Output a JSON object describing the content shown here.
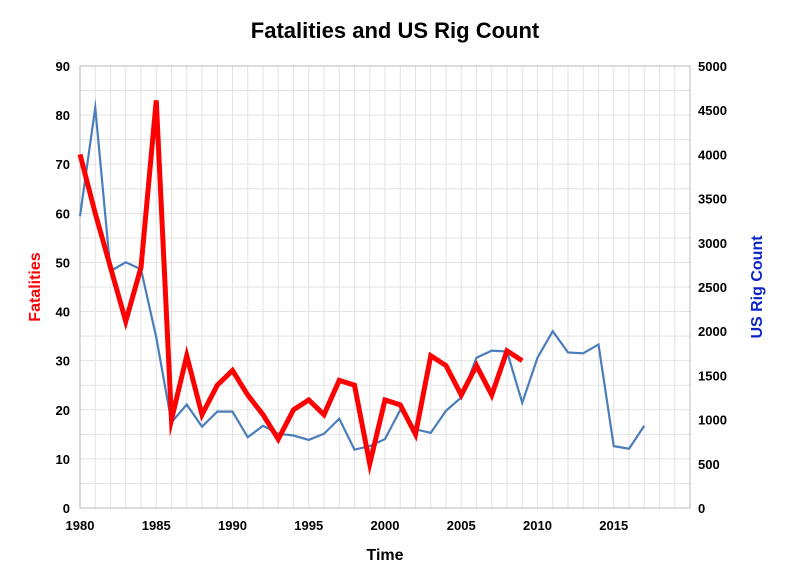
{
  "chart_data": {
    "type": "line",
    "title": "Fatalities and US Rig Count",
    "xlabel": "Time",
    "ylabel_left": "Fatalities",
    "ylabel_right": "US Rig Count",
    "xlim": [
      1980,
      2020
    ],
    "ylim_left": [
      0,
      90
    ],
    "ylim_right": [
      0,
      5000
    ],
    "x_ticks": [
      1980,
      1985,
      1990,
      1995,
      2000,
      2005,
      2010,
      2015
    ],
    "y_left_ticks": [
      0,
      10,
      20,
      30,
      40,
      50,
      60,
      70,
      80,
      90
    ],
    "y_right_ticks": [
      0,
      500,
      1000,
      1500,
      2000,
      2500,
      3000,
      3500,
      4000,
      4500,
      5000
    ],
    "grid": true,
    "colors": {
      "fatalities": "#ff0000",
      "rig_count": "#4a7ebb",
      "left_axis_title": "#ff0000",
      "right_axis_title": "#0b24c8"
    },
    "series": [
      {
        "axis": "left",
        "x": [
          1980,
          1981,
          1982,
          1983,
          1984,
          1985,
          1986,
          1987,
          1988,
          1989,
          1990,
          1991,
          1992,
          1993,
          1994,
          1995,
          1996,
          1997,
          1998,
          1999,
          2000,
          2001,
          2002,
          2003,
          2004,
          2005,
          2006,
          2007,
          2008,
          2009
        ],
        "values": [
          72,
          60,
          49,
          38,
          49,
          83,
          18,
          31,
          19,
          25,
          28,
          23,
          19,
          14,
          20,
          22,
          19,
          26,
          25,
          9,
          22,
          21,
          15,
          31,
          29,
          23,
          29,
          23,
          32,
          30
        ]
      },
      {
        "axis": "right",
        "x": [
          1980,
          1981,
          1982,
          1983,
          1984,
          1985,
          1986,
          1987,
          1988,
          1989,
          1990,
          1991,
          1992,
          1993,
          1994,
          1995,
          1996,
          1997,
          1998,
          1999,
          2000,
          2001,
          2002,
          2003,
          2004,
          2005,
          2006,
          2007,
          2008,
          2009,
          2010,
          2011,
          2012,
          2013,
          2014,
          2015,
          2016,
          2017
        ],
        "values": [
          3300,
          4530,
          2680,
          2780,
          2700,
          1930,
          970,
          1170,
          920,
          1090,
          1090,
          800,
          930,
          840,
          820,
          770,
          840,
          1010,
          660,
          700,
          780,
          1110,
          890,
          850,
          1100,
          1250,
          1700,
          1780,
          1770,
          1190,
          1700,
          2000,
          1760,
          1750,
          1850,
          700,
          670,
          930
        ]
      }
    ]
  }
}
